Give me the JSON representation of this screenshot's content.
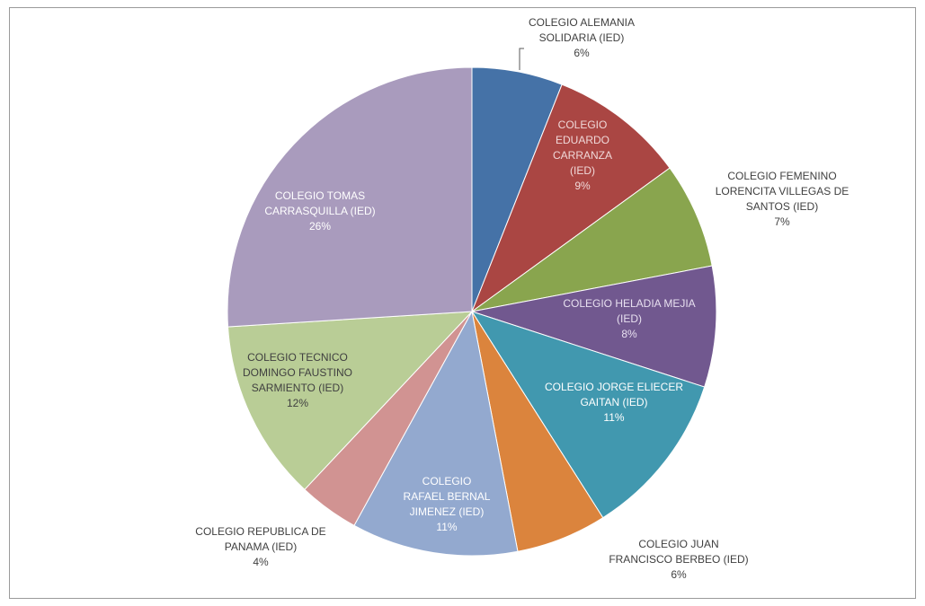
{
  "chart_data": {
    "type": "pie",
    "title": "",
    "slices": [
      {
        "label": "COLEGIO ALEMANIA SOLIDARIA (IED)",
        "lines": [
          "COLEGIO ALEMANIA",
          "SOLIDARIA (IED)"
        ],
        "percent": "6%",
        "value": 6,
        "color": "#4572a7",
        "label_color": "#404040"
      },
      {
        "label": "COLEGIO EDUARDO CARRANZA (IED)",
        "lines": [
          "COLEGIO",
          "EDUARDO",
          "CARRANZA",
          "(IED)"
        ],
        "percent": "9%",
        "value": 9,
        "color": "#aa4643",
        "label_color": "#f0d8d8"
      },
      {
        "label": "COLEGIO FEMENINO LORENCITA VILLEGAS DE SANTOS (IED)",
        "lines": [
          "COLEGIO FEMENINO",
          "LORENCITA VILLEGAS DE",
          "SANTOS (IED)"
        ],
        "percent": "7%",
        "value": 7,
        "color": "#89a54e",
        "label_color": "#404040"
      },
      {
        "label": "COLEGIO HELADIA MEJIA (IED)",
        "lines": [
          "COLEGIO HELADIA MEJIA",
          "(IED)"
        ],
        "percent": "8%",
        "value": 8,
        "color": "#71588f",
        "label_color": "#e8e0f0"
      },
      {
        "label": "COLEGIO JORGE ELIECER GAITAN (IED)",
        "lines": [
          "COLEGIO JORGE ELIECER",
          "GAITAN (IED)"
        ],
        "percent": "11%",
        "value": 11,
        "color": "#4198af",
        "label_color": "#ffffff"
      },
      {
        "label": "COLEGIO JUAN FRANCISCO BERBEO (IED)",
        "lines": [
          "COLEGIO JUAN",
          "FRANCISCO BERBEO (IED)"
        ],
        "percent": "6%",
        "value": 6,
        "color": "#db843d",
        "label_color": "#404040"
      },
      {
        "label": "COLEGIO RAFAEL BERNAL JIMENEZ (IED)",
        "lines": [
          "COLEGIO",
          "RAFAEL BERNAL",
          "JIMENEZ (IED)"
        ],
        "percent": "11%",
        "value": 11,
        "color": "#93a9cf",
        "label_color": "#ffffff"
      },
      {
        "label": "COLEGIO REPUBLICA DE PANAMA (IED)",
        "lines": [
          "COLEGIO REPUBLICA DE",
          "PANAMA (IED)"
        ],
        "percent": "4%",
        "value": 4,
        "color": "#d19392",
        "label_color": "#404040"
      },
      {
        "label": "COLEGIO TECNICO DOMINGO FAUSTINO SARMIENTO (IED)",
        "lines": [
          "COLEGIO TECNICO",
          "DOMINGO FAUSTINO",
          "SARMIENTO (IED)"
        ],
        "percent": "12%",
        "value": 12,
        "color": "#b9cd96",
        "label_color": "#404040"
      },
      {
        "label": "COLEGIO TOMAS CARRASQUILLA (IED)",
        "lines": [
          "COLEGIO TOMAS",
          "CARRASQUILLA (IED)"
        ],
        "percent": "26%",
        "value": 26,
        "color": "#a99bbd",
        "label_color": "#ffffff"
      }
    ]
  }
}
